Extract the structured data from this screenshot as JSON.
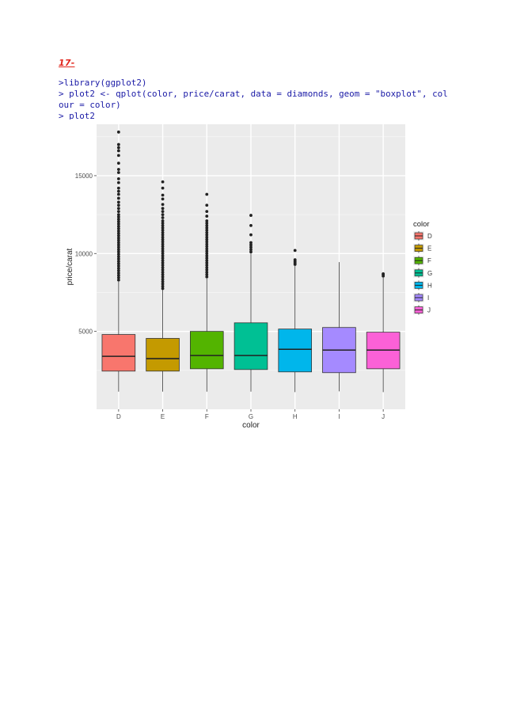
{
  "document": {
    "heading": "17-",
    "code_lines": [
      ">library(ggplot2)",
      "> plot2 <- qplot(color, price/carat, data = diamonds, geom = \"boxplot\", col",
      "our = color)",
      "> plot2"
    ]
  },
  "chart_data": {
    "type": "boxplot",
    "title": "",
    "xlabel": "color",
    "ylabel": "price/carat",
    "ylim": [
      0,
      18300
    ],
    "y_ticks": [
      5000,
      10000,
      15000
    ],
    "categories": [
      "D",
      "E",
      "F",
      "G",
      "H",
      "I",
      "J"
    ],
    "legend": {
      "title": "color",
      "placement": "right"
    },
    "grid": true,
    "panel_background": "#ebebeb",
    "series": [
      {
        "name": "D",
        "color": "#F8766D",
        "min": 1130,
        "q1": 2450,
        "median": 3400,
        "q3": 4800,
        "whisker_high": 8200,
        "outliers": [
          8300,
          8450,
          8600,
          8750,
          8900,
          9050,
          9200,
          9350,
          9500,
          9650,
          9800,
          9950,
          10100,
          10250,
          10400,
          10550,
          10700,
          10850,
          11000,
          11150,
          11300,
          11450,
          11600,
          11750,
          11900,
          12050,
          12200,
          12350,
          12500,
          12700,
          12900,
          13100,
          13300,
          13550,
          13800,
          14000,
          14200,
          14550,
          14800,
          15200,
          15400,
          15800,
          16300,
          16600,
          16800,
          17000,
          17800
        ]
      },
      {
        "name": "E",
        "color": "#C49A00",
        "min": 1130,
        "q1": 2450,
        "median": 3250,
        "q3": 4550,
        "whisker_high": 7650,
        "outliers": [
          7750,
          7900,
          8050,
          8200,
          8350,
          8500,
          8650,
          8800,
          8950,
          9100,
          9250,
          9400,
          9550,
          9700,
          9850,
          10000,
          10150,
          10300,
          10450,
          10600,
          10750,
          10900,
          11050,
          11200,
          11350,
          11500,
          11650,
          11800,
          11950,
          12100,
          12300,
          12500,
          12700,
          12900,
          13150,
          13500,
          13750,
          14200,
          14600
        ]
      },
      {
        "name": "F",
        "color": "#53B400",
        "min": 1130,
        "q1": 2600,
        "median": 3450,
        "q3": 5000,
        "whisker_high": 8400,
        "outliers": [
          8500,
          8650,
          8800,
          8950,
          9100,
          9250,
          9400,
          9550,
          9700,
          9850,
          10000,
          10150,
          10300,
          10450,
          10600,
          10750,
          10900,
          11050,
          11200,
          11350,
          11500,
          11650,
          11800,
          11950,
          12100,
          12400,
          12700,
          13100,
          13800
        ]
      },
      {
        "name": "G",
        "color": "#00C094",
        "min": 1130,
        "q1": 2550,
        "median": 3450,
        "q3": 5550,
        "whisker_high": 10000,
        "outliers": [
          10100,
          10250,
          10400,
          10550,
          10700,
          11200,
          11800,
          12450
        ]
      },
      {
        "name": "H",
        "color": "#00B6EB",
        "min": 1100,
        "q1": 2400,
        "median": 3850,
        "q3": 5150,
        "whisker_high": 9200,
        "outliers": [
          9300,
          9400,
          9500,
          9600,
          10200
        ]
      },
      {
        "name": "I",
        "color": "#A58AFF",
        "min": 1150,
        "q1": 2350,
        "median": 3800,
        "q3": 5250,
        "whisker_high": 9450,
        "outliers": []
      },
      {
        "name": "J",
        "color": "#FB61D7",
        "min": 1100,
        "q1": 2600,
        "median": 3800,
        "q3": 4950,
        "whisker_high": 8450,
        "outliers": [
          8550,
          8650,
          8700
        ]
      }
    ]
  }
}
